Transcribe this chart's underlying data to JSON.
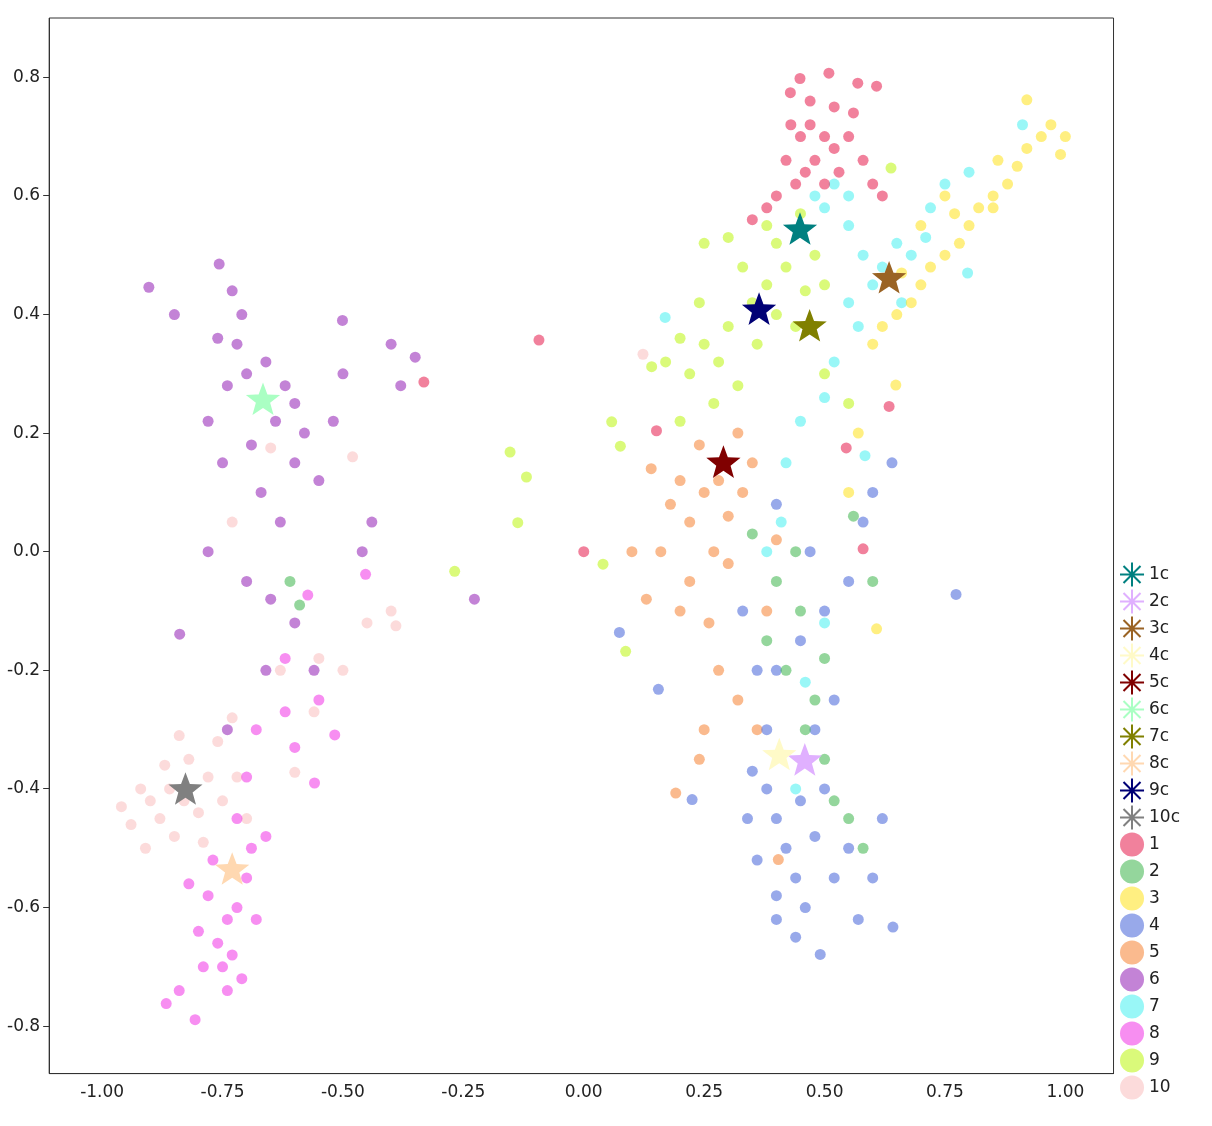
{
  "chart_data": {
    "type": "scatter",
    "xlim": [
      -1.11,
      1.1
    ],
    "ylim": [
      -0.88,
      0.9
    ],
    "xticks": [
      {
        "value": -1,
        "label": "-1.00"
      },
      {
        "value": -0.75,
        "label": "-0.75"
      },
      {
        "value": -0.5,
        "label": "-0.50"
      },
      {
        "value": -0.25,
        "label": "-0.25"
      },
      {
        "value": 0,
        "label": "0.00"
      },
      {
        "value": 0.25,
        "label": "0.25"
      },
      {
        "value": 0.5,
        "label": "0.50"
      },
      {
        "value": 0.75,
        "label": "0.75"
      },
      {
        "value": 1,
        "label": "1.00"
      }
    ],
    "yticks": [
      {
        "value": -0.8,
        "label": "-0.8"
      },
      {
        "value": -0.6,
        "label": "-0.6"
      },
      {
        "value": -0.4,
        "label": "-0.4"
      },
      {
        "value": -0.2,
        "label": "-0.2"
      },
      {
        "value": 0,
        "label": "0.0"
      },
      {
        "value": 0.2,
        "label": "0.2"
      },
      {
        "value": 0.4,
        "label": "0.4"
      },
      {
        "value": 0.6,
        "label": "0.6"
      },
      {
        "value": 0.8,
        "label": "0.8"
      }
    ],
    "grid": false,
    "legend": "bottom right",
    "series": [
      {
        "name": "1c",
        "color": "#008080",
        "marker": "star",
        "x": [
          0.449
        ],
        "values": [
          0.542
        ]
      },
      {
        "name": "2c",
        "color": "#e0b0ff",
        "marker": "star",
        "x": [
          0.459
        ],
        "values": [
          -0.353
        ]
      },
      {
        "name": "3c",
        "color": "#9a6324",
        "marker": "star",
        "x": [
          0.634
        ],
        "values": [
          0.46
        ]
      },
      {
        "name": "4c",
        "color": "#fffac8",
        "marker": "star",
        "x": [
          0.406
        ],
        "values": [
          -0.344
        ]
      },
      {
        "name": "5c",
        "color": "#800000",
        "marker": "star",
        "x": [
          0.29
        ],
        "values": [
          0.149
        ]
      },
      {
        "name": "6c",
        "color": "#aaffc3",
        "marker": "star",
        "x": [
          -0.666
        ],
        "values": [
          0.255
        ]
      },
      {
        "name": "7c",
        "color": "#808000",
        "marker": "star",
        "x": [
          0.469
        ],
        "values": [
          0.379
        ]
      },
      {
        "name": "8c",
        "color": "#ffd8b1",
        "marker": "star",
        "x": [
          -0.73
        ],
        "values": [
          -0.537
        ]
      },
      {
        "name": "9c",
        "color": "#000075",
        "marker": "star",
        "x": [
          0.364
        ],
        "values": [
          0.407
        ]
      },
      {
        "name": "10c",
        "color": "#808080",
        "marker": "star",
        "x": [
          -0.827
        ],
        "values": [
          -0.402
        ]
      },
      {
        "name": "1",
        "color": "#e6194b",
        "marker": "circle",
        "x": [
          0.45,
          0.47,
          0.5,
          0.52,
          0.48,
          0.46,
          0.5,
          0.53,
          0.44,
          0.42,
          0.55,
          0.56,
          0.43,
          0.52,
          0.47,
          0.4,
          0.58,
          0.6,
          0.38,
          0.35,
          0.62,
          0.449,
          0.509,
          0.569,
          0.608,
          0.429,
          -0.093,
          -0.332,
          0,
          0.58,
          0.151,
          0.545,
          0.634
        ],
        "values": [
          0.7,
          0.72,
          0.7,
          0.68,
          0.66,
          0.64,
          0.62,
          0.64,
          0.62,
          0.66,
          0.7,
          0.74,
          0.72,
          0.75,
          0.76,
          0.6,
          0.66,
          0.62,
          0.58,
          0.56,
          0.6,
          0.798,
          0.807,
          0.79,
          0.785,
          0.774,
          0.357,
          0.286,
          0,
          0.005,
          0.204,
          0.175,
          0.245
        ]
      },
      {
        "name": "2",
        "color": "#3cb44b",
        "marker": "circle",
        "x": [
          0.4,
          0.45,
          0.42,
          0.48,
          0.5,
          0.52,
          0.55,
          0.46,
          0.38,
          0.58,
          0.6,
          0.56,
          0.35,
          0.44,
          0.5,
          -0.61,
          -0.59
        ],
        "values": [
          -0.05,
          -0.1,
          -0.2,
          -0.25,
          -0.35,
          -0.42,
          -0.45,
          -0.3,
          -0.15,
          -0.5,
          -0.05,
          0.06,
          0.03,
          0,
          -0.18,
          -0.05,
          -0.09
        ]
      },
      {
        "name": "3",
        "color": "#ffe119",
        "marker": "circle",
        "x": [
          0.9,
          0.88,
          0.85,
          0.92,
          0.86,
          0.82,
          0.8,
          0.78,
          0.75,
          0.72,
          0.7,
          0.68,
          0.65,
          0.62,
          0.95,
          0.97,
          0.99,
          0.92,
          1.0,
          0.75,
          0.7,
          0.66,
          0.6,
          0.648,
          0.57,
          0.55,
          0.608,
          0.85,
          0.77
        ],
        "values": [
          0.65,
          0.62,
          0.6,
          0.68,
          0.66,
          0.58,
          0.55,
          0.52,
          0.5,
          0.48,
          0.45,
          0.42,
          0.4,
          0.38,
          0.7,
          0.72,
          0.67,
          0.762,
          0.7,
          0.6,
          0.55,
          0.47,
          0.35,
          0.281,
          0.2,
          0.1,
          -0.13,
          0.58,
          0.57
        ]
      },
      {
        "name": "4",
        "color": "#4363d8",
        "marker": "circle",
        "x": [
          0.4,
          0.42,
          0.45,
          0.38,
          0.44,
          0.48,
          0.4,
          0.36,
          0.5,
          0.46,
          0.35,
          0.38,
          0.48,
          0.52,
          0.34,
          0.55,
          0.44,
          0.491,
          0.4,
          0.57,
          0.6,
          0.62,
          0.225,
          0.4,
          0.45,
          0.5,
          0.55,
          0.58,
          0.6,
          0.33,
          0.155,
          0.074,
          0.773,
          0.52,
          0.36,
          0.642,
          0.64,
          0.47,
          0.4
        ],
        "values": [
          -0.45,
          -0.5,
          -0.42,
          -0.4,
          -0.55,
          -0.48,
          -0.58,
          -0.52,
          -0.4,
          -0.6,
          -0.37,
          -0.3,
          -0.3,
          -0.55,
          -0.45,
          -0.5,
          -0.65,
          -0.679,
          -0.62,
          -0.62,
          -0.55,
          -0.45,
          -0.418,
          -0.2,
          -0.15,
          -0.1,
          -0.05,
          0.05,
          0.1,
          -0.1,
          -0.232,
          -0.136,
          -0.072,
          -0.25,
          -0.2,
          -0.633,
          0.15,
          0,
          0.08
        ]
      },
      {
        "name": "5",
        "color": "#f58231",
        "marker": "circle",
        "x": [
          0.25,
          0.22,
          0.28,
          0.2,
          0.3,
          0.24,
          0.18,
          0.27,
          0.33,
          0.16,
          0.22,
          0.3,
          0.2,
          0.26,
          0.32,
          0.35,
          0.14,
          0.28,
          0.32,
          0.36,
          0.25,
          0.191,
          0.24,
          0.1,
          0.13,
          0.4,
          0.38,
          0.404
        ],
        "values": [
          0.1,
          0.05,
          0.12,
          0.12,
          0.06,
          0.18,
          0.08,
          0,
          0.1,
          0,
          -0.05,
          -0.02,
          -0.1,
          -0.12,
          0.2,
          0.15,
          0.14,
          -0.2,
          -0.25,
          -0.3,
          -0.3,
          -0.407,
          -0.35,
          0,
          -0.08,
          0.02,
          -0.1,
          -0.519
        ]
      },
      {
        "name": "6",
        "color": "#911eb4",
        "marker": "circle",
        "x": [
          -0.7,
          -0.72,
          -0.6,
          -0.74,
          -0.66,
          -0.71,
          -0.64,
          -0.76,
          -0.69,
          -0.62,
          -0.73,
          -0.67,
          -0.6,
          -0.757,
          -0.903,
          -0.85,
          -0.78,
          -0.75,
          -0.63,
          -0.58,
          -0.55,
          -0.52,
          -0.5,
          -0.501,
          -0.4,
          -0.38,
          -0.35,
          -0.78,
          -0.7,
          -0.65,
          -0.6,
          -0.56,
          -0.66,
          -0.839,
          -0.46,
          -0.227,
          -0.44,
          -0.74
        ],
        "values": [
          0.3,
          0.35,
          0.25,
          0.28,
          0.32,
          0.4,
          0.22,
          0.36,
          0.18,
          0.28,
          0.44,
          0.1,
          0.15,
          0.485,
          0.446,
          0.4,
          0.22,
          0.15,
          0.05,
          0.2,
          0.12,
          0.22,
          0.3,
          0.39,
          0.35,
          0.28,
          0.328,
          0,
          -0.05,
          -0.08,
          -0.12,
          -0.2,
          -0.2,
          -0.139,
          0,
          -0.08,
          0.05,
          -0.3
        ]
      },
      {
        "name": "7",
        "color": "#46f0f0",
        "marker": "circle",
        "x": [
          0.6,
          0.58,
          0.62,
          0.55,
          0.65,
          0.55,
          0.5,
          0.52,
          0.48,
          0.68,
          0.71,
          0.72,
          0.66,
          0.57,
          0.52,
          0.5,
          0.45,
          0.42,
          0.41,
          0.55,
          0.75,
          0.8,
          0.911,
          0.797,
          0.169,
          0.584,
          0.44,
          0.46,
          0.5,
          0.38
        ],
        "values": [
          0.45,
          0.5,
          0.48,
          0.42,
          0.52,
          0.55,
          0.58,
          0.62,
          0.6,
          0.5,
          0.53,
          0.58,
          0.42,
          0.38,
          0.32,
          0.26,
          0.22,
          0.15,
          0.05,
          0.6,
          0.62,
          0.64,
          0.72,
          0.47,
          0.395,
          0.162,
          -0.4,
          -0.22,
          -0.12,
          0
        ]
      },
      {
        "name": "8",
        "color": "#f032e6",
        "marker": "circle",
        "x": [
          -0.74,
          -0.76,
          -0.72,
          -0.75,
          -0.73,
          -0.78,
          -0.7,
          -0.77,
          -0.71,
          -0.74,
          -0.8,
          -0.68,
          -0.79,
          -0.82,
          -0.69,
          -0.66,
          -0.72,
          -0.84,
          -0.807,
          -0.867,
          -0.7,
          -0.68,
          -0.62,
          -0.6,
          -0.55,
          -0.559,
          -0.517,
          -0.62,
          -0.573,
          -0.453
        ],
        "values": [
          -0.62,
          -0.66,
          -0.6,
          -0.7,
          -0.68,
          -0.58,
          -0.55,
          -0.52,
          -0.72,
          -0.74,
          -0.64,
          -0.62,
          -0.7,
          -0.56,
          -0.5,
          -0.48,
          -0.45,
          -0.74,
          -0.789,
          -0.762,
          -0.38,
          -0.3,
          -0.27,
          -0.33,
          -0.25,
          -0.39,
          -0.309,
          -0.18,
          -0.073,
          -0.038
        ]
      },
      {
        "name": "9",
        "color": "#bcf60c",
        "marker": "circle",
        "x": [
          0.4,
          0.38,
          0.42,
          0.35,
          0.44,
          0.36,
          0.3,
          0.46,
          0.4,
          0.33,
          0.28,
          0.25,
          0.48,
          0.5,
          0.38,
          0.32,
          0.27,
          0.22,
          0.2,
          0.24,
          0.45,
          0.3,
          0.17,
          0.2,
          0.058,
          0.076,
          -0.153,
          -0.119,
          -0.137,
          -0.268,
          0.04,
          0.087,
          0.141,
          0.638,
          0.25,
          0.5,
          0.55
        ],
        "values": [
          0.4,
          0.45,
          0.48,
          0.42,
          0.38,
          0.35,
          0.38,
          0.44,
          0.52,
          0.48,
          0.32,
          0.35,
          0.5,
          0.45,
          0.55,
          0.28,
          0.25,
          0.3,
          0.36,
          0.42,
          0.57,
          0.53,
          0.32,
          0.22,
          0.219,
          0.178,
          0.168,
          0.126,
          0.049,
          -0.033,
          -0.021,
          -0.168,
          0.312,
          0.647,
          0.52,
          0.3,
          0.25
        ]
      },
      {
        "name": "10",
        "color": "#fabebe",
        "marker": "circle",
        "x": [
          -0.83,
          -0.86,
          -0.8,
          -0.88,
          -0.78,
          -0.85,
          -0.9,
          -0.82,
          -0.75,
          -0.92,
          -0.87,
          -0.79,
          -0.94,
          -0.72,
          -0.7,
          -0.84,
          -0.76,
          -0.96,
          -0.91,
          -0.73,
          -0.65,
          -0.73,
          -0.5,
          -0.45,
          -0.4,
          -0.39,
          -0.56,
          -0.6,
          -0.48,
          0.123,
          -0.55,
          -0.63
        ],
        "values": [
          -0.42,
          -0.4,
          -0.44,
          -0.45,
          -0.38,
          -0.48,
          -0.42,
          -0.35,
          -0.42,
          -0.4,
          -0.36,
          -0.49,
          -0.46,
          -0.38,
          -0.45,
          -0.31,
          -0.32,
          -0.43,
          -0.5,
          -0.28,
          0.175,
          0.05,
          -0.2,
          -0.12,
          -0.1,
          -0.125,
          -0.27,
          -0.372,
          0.16,
          0.333,
          -0.18,
          -0.2
        ]
      }
    ]
  }
}
